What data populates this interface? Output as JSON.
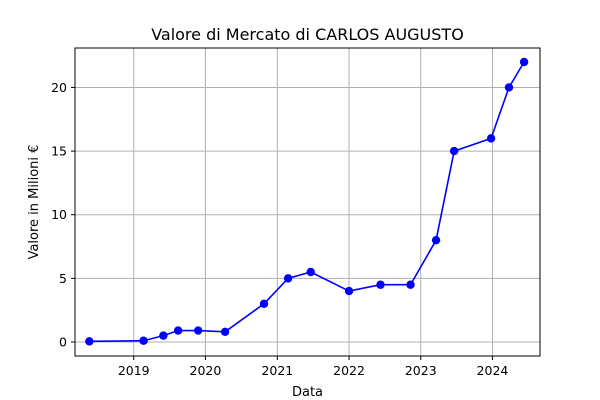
{
  "chart_data": {
    "type": "line",
    "title": "Valore di Mercato di CARLOS AUGUSTO",
    "xlabel": "Data",
    "ylabel": "Valore in Milioni €",
    "x_type": "date",
    "xlim": [
      "2018-03-08",
      "2024-08-30"
    ],
    "ylim": [
      -1.1,
      23.1
    ],
    "xticks": [
      {
        "date": "2019-01-01",
        "label": "2019"
      },
      {
        "date": "2020-01-01",
        "label": "2020"
      },
      {
        "date": "2021-01-01",
        "label": "2021"
      },
      {
        "date": "2022-01-01",
        "label": "2022"
      },
      {
        "date": "2023-01-01",
        "label": "2023"
      },
      {
        "date": "2024-01-01",
        "label": "2024"
      }
    ],
    "yticks": [
      {
        "value": 0,
        "label": "0"
      },
      {
        "value": 5,
        "label": "5"
      },
      {
        "value": 10,
        "label": "10"
      },
      {
        "value": 15,
        "label": "15"
      },
      {
        "value": 20,
        "label": "20"
      }
    ],
    "grid": true,
    "series": [
      {
        "color": "#0000ff",
        "marker": "circle",
        "x": [
          "2018-05-20",
          "2019-02-20",
          "2019-06-01",
          "2019-08-15",
          "2019-11-25",
          "2020-04-10",
          "2020-10-25",
          "2021-02-25",
          "2021-06-20",
          "2022-01-01",
          "2022-06-10",
          "2022-11-10",
          "2023-03-20",
          "2023-06-20",
          "2023-12-25",
          "2024-03-25",
          "2024-06-10"
        ],
        "y": [
          0.05,
          0.1,
          0.5,
          0.9,
          0.9,
          0.8,
          3.0,
          5.0,
          5.5,
          4.0,
          4.5,
          4.5,
          8.0,
          15.0,
          16.0,
          20.0,
          22.0
        ]
      }
    ]
  }
}
